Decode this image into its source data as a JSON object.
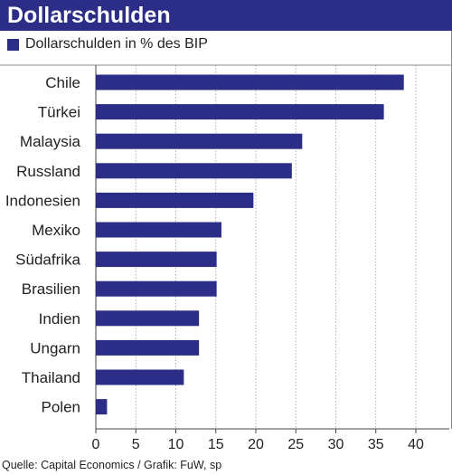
{
  "chart_data": {
    "type": "bar",
    "orientation": "horizontal",
    "title": "Dollarschulden",
    "legend": [
      "Dollarschulden in % des BIP"
    ],
    "categories": [
      "Chile",
      "Türkei",
      "Malaysia",
      "Russland",
      "Indonesien",
      "Mexiko",
      "Südafrika",
      "Brasilien",
      "Indien",
      "Ungarn",
      "Thailand",
      "Polen"
    ],
    "series": [
      {
        "name": "Dollarschulden in % des BIP",
        "values": [
          38.5,
          36.0,
          25.8,
          24.5,
          19.7,
          15.7,
          15.1,
          15.1,
          12.9,
          12.9,
          11.0,
          1.4
        ]
      }
    ],
    "xlim": [
      0,
      40
    ],
    "xticks": [
      "0",
      "5",
      "10",
      "15",
      "20",
      "25",
      "30",
      "35",
      "40"
    ],
    "grid": true,
    "legend_position": "top-left",
    "source": "Quelle: Capital Economics / Grafik: FuW, sp",
    "colors": {
      "bar": "#2b2d86",
      "grid": "#999999",
      "title_bg": "#2b2d86"
    }
  }
}
